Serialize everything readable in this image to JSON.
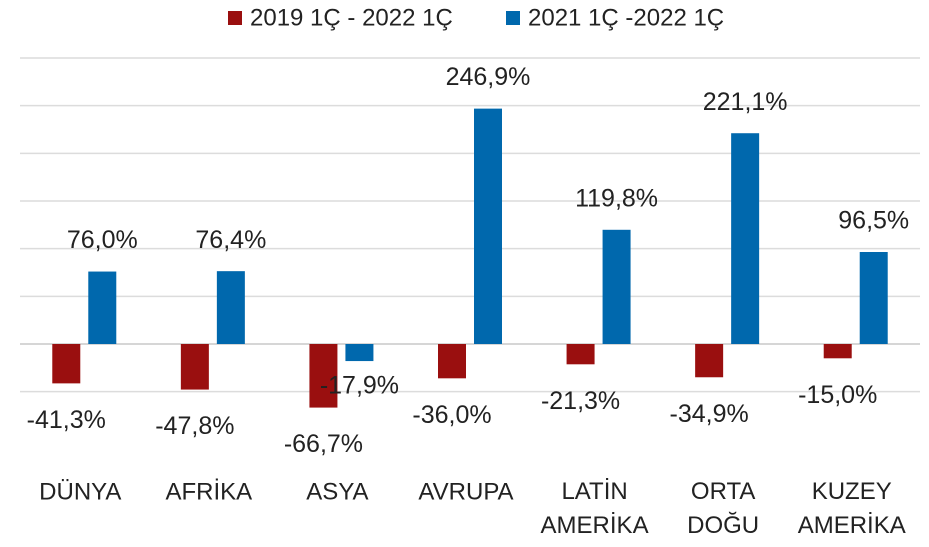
{
  "chart_data": {
    "type": "bar",
    "categories": [
      "DÜNYA",
      "AFRİKA",
      "ASYA",
      "AVRUPA",
      "LATİN AMERİKA",
      "ORTA DOĞU",
      "KUZEY AMERİKA"
    ],
    "series": [
      {
        "name": "2019 1Ç - 2022 1Ç",
        "color": "#9a0f0f",
        "values": [
          -41.3,
          -47.8,
          -66.7,
          -36.0,
          -21.3,
          -34.9,
          -15.0
        ],
        "value_labels": [
          "-41,3%",
          "-47,8%",
          "-66,7%",
          "-36,0%",
          "-21,3%",
          "-34,9%",
          "-15,0%"
        ]
      },
      {
        "name": "2021 1Ç -2022 1Ç",
        "color": "#0068ad",
        "values": [
          76.0,
          76.4,
          -17.9,
          246.9,
          119.8,
          221.1,
          96.5
        ],
        "value_labels": [
          "76,0%",
          "76,4%",
          "-17,9%",
          "246,9%",
          "119,8%",
          "221,1%",
          "96,5%"
        ]
      }
    ],
    "ylim": [
      -100,
      300
    ],
    "yticks": [
      -50,
      0,
      50,
      100,
      150,
      200,
      250,
      300
    ],
    "grid": true,
    "legend": "top"
  }
}
